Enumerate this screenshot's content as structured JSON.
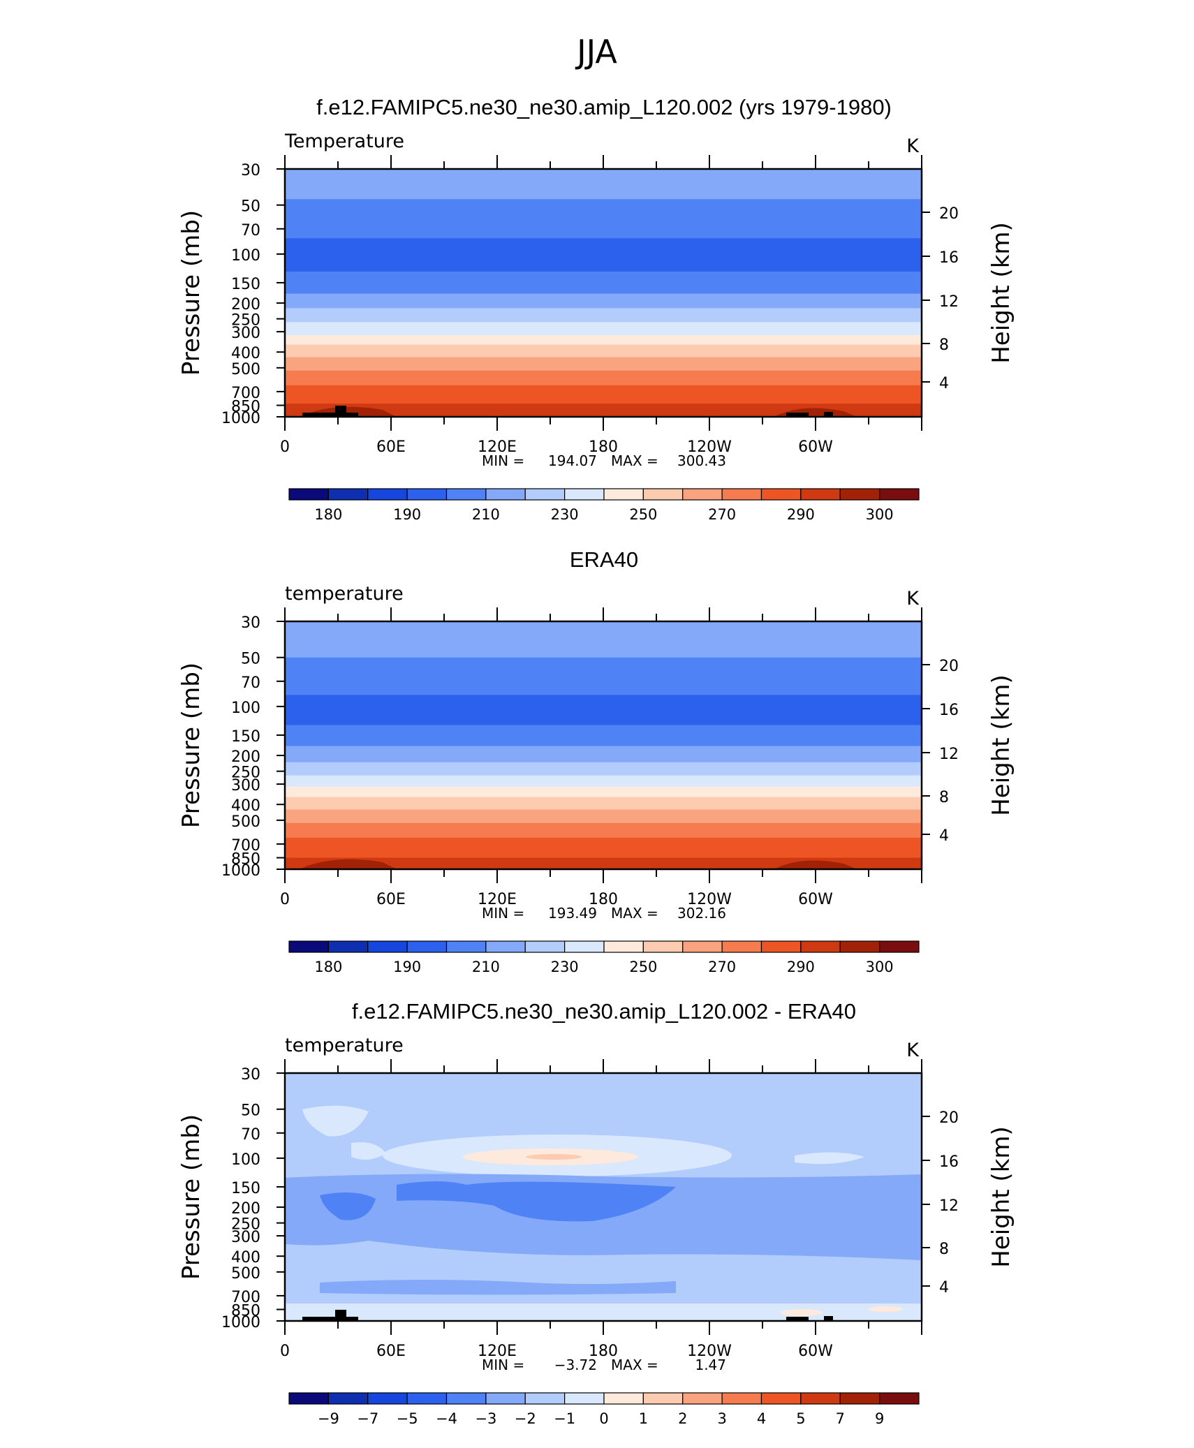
{
  "figure_title": "JJA",
  "colors": {
    "abs_scale": [
      "#0a0a7a",
      "#0d2fb0",
      "#1646de",
      "#2c61ee",
      "#4f82f5",
      "#83a9f8",
      "#b2cdfb",
      "#d9e8fd",
      "#feeadc",
      "#fccbb0",
      "#f9a37f",
      "#f67b4f",
      "#ee5525",
      "#cf3a12",
      "#a22208",
      "#7a0d0d"
    ],
    "diff_scale": [
      "#0a0a7a",
      "#0d2fb0",
      "#1646de",
      "#2c61ee",
      "#4f82f5",
      "#83a9f8",
      "#b2cdfb",
      "#d9e8fd",
      "#feeadc",
      "#fccbb0",
      "#f9a37f",
      "#f67b4f",
      "#ee5525",
      "#cf3a12",
      "#a22208",
      "#7a0d0d"
    ],
    "topography": "#000000"
  },
  "chart_data": [
    {
      "type": "heatmap",
      "title": "f.e12.FAMIPC5.ne30_ne30.amip_L120.002 (yrs 1979-1980)",
      "left_label": "Temperature",
      "right_label": "K",
      "ylabel": "Pressure (mb)",
      "y2label": "Height (km)",
      "y_ticks": [
        "30",
        "50",
        "70",
        "100",
        "150",
        "200",
        "250",
        "300",
        "400",
        "500",
        "700",
        "850",
        "1000"
      ],
      "y2_ticks": [
        "20",
        "16",
        "12",
        "8",
        "4"
      ],
      "x_ticks": [
        "0",
        "60E",
        "120E",
        "180",
        "120W",
        "60W"
      ],
      "min_max": {
        "min_label": "MIN =",
        "min": "194.07",
        "max_label": "MAX =",
        "max": "300.43"
      },
      "colorbar_labels": [
        "180",
        "190",
        "210",
        "230",
        "250",
        "270",
        "290",
        "300"
      ],
      "layers_by_pressure_mb": [
        {
          "p_top": 30,
          "p_bottom": 46,
          "color_index": 5
        },
        {
          "p_top": 46,
          "p_bottom": 80,
          "color_index": 4
        },
        {
          "p_top": 80,
          "p_bottom": 128,
          "color_index": 3
        },
        {
          "p_top": 128,
          "p_bottom": 175,
          "color_index": 4
        },
        {
          "p_top": 175,
          "p_bottom": 215,
          "color_index": 5
        },
        {
          "p_top": 215,
          "p_bottom": 262,
          "color_index": 6
        },
        {
          "p_top": 262,
          "p_bottom": 315,
          "color_index": 7
        },
        {
          "p_top": 315,
          "p_bottom": 360,
          "color_index": 8
        },
        {
          "p_top": 360,
          "p_bottom": 430,
          "color_index": 9
        },
        {
          "p_top": 430,
          "p_bottom": 520,
          "color_index": 10
        },
        {
          "p_top": 520,
          "p_bottom": 640,
          "color_index": 11
        },
        {
          "p_top": 640,
          "p_bottom": 830,
          "color_index": 12
        },
        {
          "p_top": 830,
          "p_bottom": 1000,
          "color_index": 13
        }
      ],
      "topography": true
    },
    {
      "type": "heatmap",
      "title": "ERA40",
      "left_label": "temperature",
      "right_label": "K",
      "ylabel": "Pressure (mb)",
      "y2label": "Height (km)",
      "y_ticks": [
        "30",
        "50",
        "70",
        "100",
        "150",
        "200",
        "250",
        "300",
        "400",
        "500",
        "700",
        "850",
        "1000"
      ],
      "y2_ticks": [
        "20",
        "16",
        "12",
        "8",
        "4"
      ],
      "x_ticks": [
        "0",
        "60E",
        "120E",
        "180",
        "120W",
        "60W"
      ],
      "min_max": {
        "min_label": "MIN =",
        "min": "193.49",
        "max_label": "MAX =",
        "max": "302.16"
      },
      "colorbar_labels": [
        "180",
        "190",
        "210",
        "230",
        "250",
        "270",
        "290",
        "300"
      ],
      "layers_by_pressure_mb": [
        {
          "p_top": 30,
          "p_bottom": 50,
          "color_index": 5
        },
        {
          "p_top": 50,
          "p_bottom": 85,
          "color_index": 4
        },
        {
          "p_top": 85,
          "p_bottom": 130,
          "color_index": 3
        },
        {
          "p_top": 130,
          "p_bottom": 175,
          "color_index": 4
        },
        {
          "p_top": 175,
          "p_bottom": 220,
          "color_index": 5
        },
        {
          "p_top": 220,
          "p_bottom": 265,
          "color_index": 6
        },
        {
          "p_top": 265,
          "p_bottom": 310,
          "color_index": 7
        },
        {
          "p_top": 310,
          "p_bottom": 360,
          "color_index": 8
        },
        {
          "p_top": 360,
          "p_bottom": 430,
          "color_index": 9
        },
        {
          "p_top": 430,
          "p_bottom": 520,
          "color_index": 10
        },
        {
          "p_top": 520,
          "p_bottom": 640,
          "color_index": 11
        },
        {
          "p_top": 640,
          "p_bottom": 850,
          "color_index": 12
        },
        {
          "p_top": 850,
          "p_bottom": 1000,
          "color_index": 13
        }
      ],
      "topography": false
    },
    {
      "type": "heatmap",
      "title": "f.e12.FAMIPC5.ne30_ne30.amip_L120.002 - ERA40",
      "left_label": "temperature",
      "right_label": "K",
      "ylabel": "Pressure (mb)",
      "y2label": "Height (km)",
      "y_ticks": [
        "30",
        "50",
        "70",
        "100",
        "150",
        "200",
        "250",
        "300",
        "400",
        "500",
        "700",
        "850",
        "1000"
      ],
      "y2_ticks": [
        "20",
        "16",
        "12",
        "8",
        "4"
      ],
      "x_ticks": [
        "0",
        "60E",
        "120E",
        "180",
        "120W",
        "60W"
      ],
      "min_max": {
        "min_label": "MIN =",
        "min": "−3.72",
        "max_label": "MAX =",
        "max": "1.47"
      },
      "colorbar_labels": [
        "−9",
        "−7",
        "−5",
        "−4",
        "−3",
        "−2",
        "−1",
        "0",
        "1",
        "2",
        "3",
        "4",
        "5",
        "7",
        "9"
      ],
      "background_color_index": 6,
      "topography": true
    }
  ]
}
